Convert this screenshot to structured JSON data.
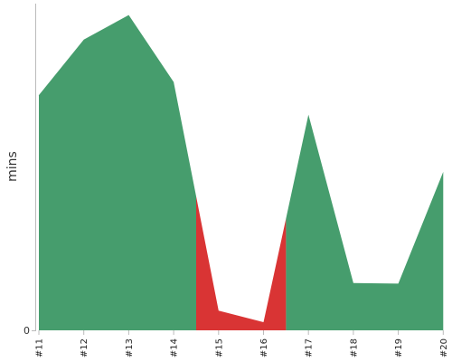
{
  "colors": {
    "good": "#469d6d",
    "bad": "#d93434",
    "axis": "#bbbbbb",
    "background": "#ffffff"
  },
  "chart_data": {
    "type": "area",
    "title": "",
    "xlabel": "",
    "ylabel": "mins",
    "x": [
      "#11",
      "#12",
      "#13",
      "#14",
      "#15",
      "#16",
      "#17",
      "#18",
      "#19",
      "#20"
    ],
    "values": [
      72,
      89,
      96.5,
      76,
      6,
      2.5,
      66,
      14.5,
      14.3,
      48.5
    ],
    "status": [
      "good",
      "good",
      "good",
      "good",
      "bad",
      "bad",
      "good",
      "good",
      "good",
      "good"
    ],
    "ylim": [
      0,
      100
    ],
    "yticks": [
      {
        "value": 0,
        "label": "0"
      }
    ],
    "grid": false,
    "legend": "none"
  }
}
